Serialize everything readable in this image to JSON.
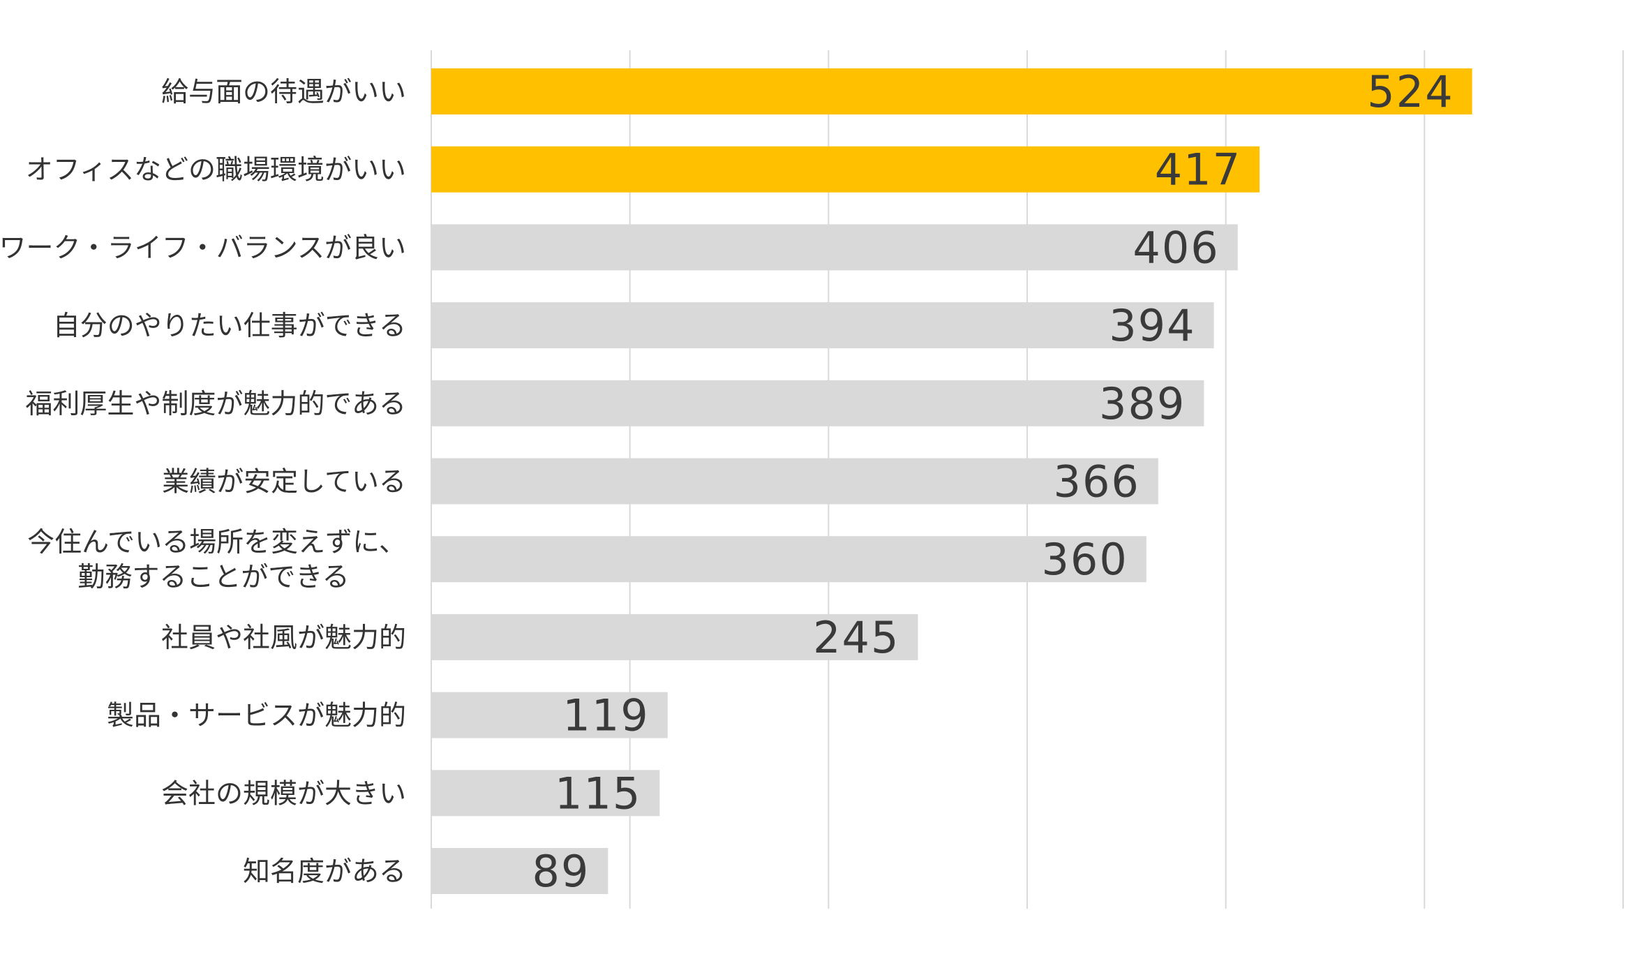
{
  "chart_data": {
    "type": "bar",
    "orientation": "horizontal",
    "categories": [
      "給与面の待遇がいい",
      "オフィスなどの職場環境がいい",
      "ワーク・ライフ・バランスが良い",
      "自分のやりたい仕事ができる",
      "福利厚生や制度が魅力的である",
      "業績が安定している",
      "今住んでいる場所を変えずに、\n勤務することができる",
      "社員や社風が魅力的",
      "製品・サービスが魅力的",
      "会社の規模が大きい",
      "知名度がある"
    ],
    "values": [
      524,
      417,
      406,
      394,
      389,
      366,
      360,
      245,
      119,
      115,
      89
    ],
    "highlighted": [
      true,
      true,
      false,
      false,
      false,
      false,
      false,
      false,
      false,
      false,
      false
    ],
    "xlim": [
      0,
      600
    ],
    "grid": true,
    "data_labels": true,
    "colors": {
      "highlight": "#FFC000",
      "default": "#D9D9D9",
      "grid": "#D9D9D9",
      "label": "#333333"
    }
  }
}
